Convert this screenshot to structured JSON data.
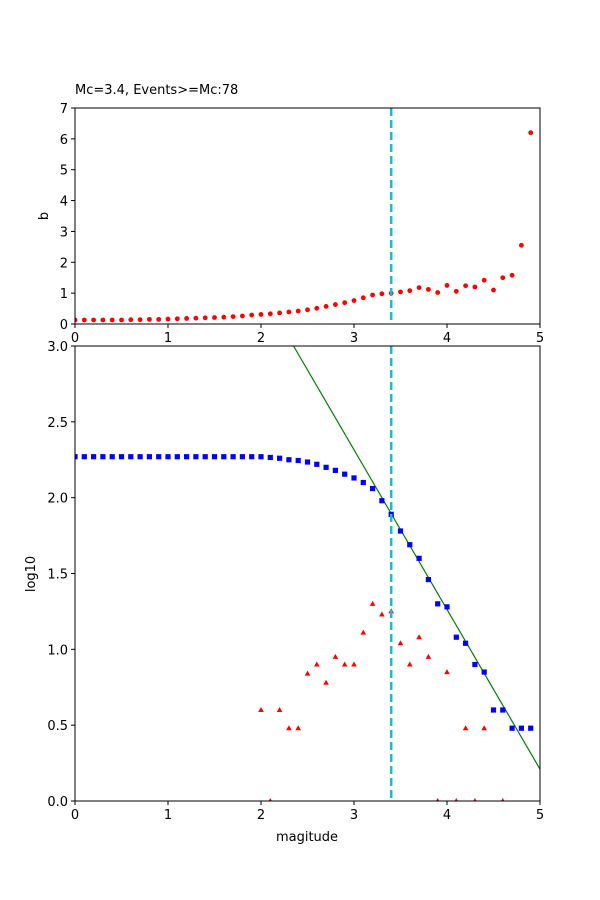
{
  "chart_data": [
    {
      "type": "scatter",
      "title": "Mc=3.4, Events>=Mc:78",
      "xlabel": "",
      "ylabel": "b",
      "xlim": [
        0,
        5
      ],
      "ylim": [
        0,
        7
      ],
      "xticks": [
        "0",
        "1",
        "2",
        "3",
        "4",
        "5"
      ],
      "yticks": [
        "0",
        "1",
        "2",
        "3",
        "4",
        "5",
        "6",
        "7"
      ],
      "grid": false,
      "mc_line": {
        "x": 3.4,
        "color": "#17becf",
        "style": "dashed"
      },
      "series": [
        {
          "marker": "circle",
          "color": "#ff0000",
          "x": [
            0.0,
            0.1,
            0.2,
            0.3,
            0.4,
            0.5,
            0.6,
            0.7,
            0.8,
            0.9,
            1.0,
            1.1,
            1.2,
            1.3,
            1.4,
            1.5,
            1.6,
            1.7,
            1.8,
            1.9,
            2.0,
            2.1,
            2.2,
            2.3,
            2.4,
            2.5,
            2.6,
            2.7,
            2.8,
            2.9,
            3.0,
            3.1,
            3.2,
            3.3,
            3.4,
            3.5,
            3.6,
            3.7,
            3.8,
            3.9,
            4.0,
            4.1,
            4.2,
            4.3,
            4.4,
            4.5,
            4.6,
            4.7,
            4.8,
            4.9
          ],
          "y": [
            0.13,
            0.13,
            0.13,
            0.13,
            0.13,
            0.13,
            0.14,
            0.14,
            0.15,
            0.15,
            0.16,
            0.17,
            0.18,
            0.19,
            0.2,
            0.21,
            0.22,
            0.24,
            0.26,
            0.29,
            0.31,
            0.33,
            0.36,
            0.39,
            0.42,
            0.46,
            0.51,
            0.57,
            0.63,
            0.69,
            0.76,
            0.85,
            0.94,
            0.98,
            1.0,
            1.04,
            1.08,
            1.18,
            1.12,
            1.02,
            1.25,
            1.06,
            1.24,
            1.2,
            1.42,
            1.1,
            1.5,
            1.58,
            2.55,
            6.2
          ]
        }
      ]
    },
    {
      "type": "scatter",
      "title": "",
      "xlabel": "magitude",
      "ylabel": "log10",
      "xlim": [
        0,
        5
      ],
      "ylim": [
        0,
        3
      ],
      "xticks": [
        "0",
        "1",
        "2",
        "3",
        "4",
        "5"
      ],
      "yticks": [
        "0.0",
        "0.5",
        "1.0",
        "1.5",
        "2.0",
        "2.5",
        "3.0"
      ],
      "grid": false,
      "mc_line": {
        "x": 3.4,
        "color": "#17becf",
        "style": "dashed"
      },
      "fit_line": {
        "color": "#008000",
        "x": [
          2.35,
          5.0
        ],
        "y": [
          3.0,
          0.21
        ]
      },
      "series": [
        {
          "marker": "square",
          "color": "#0000ff",
          "x": [
            0.0,
            0.1,
            0.2,
            0.3,
            0.4,
            0.5,
            0.6,
            0.7,
            0.8,
            0.9,
            1.0,
            1.1,
            1.2,
            1.3,
            1.4,
            1.5,
            1.6,
            1.7,
            1.8,
            1.9,
            2.0,
            2.1,
            2.2,
            2.3,
            2.4,
            2.5,
            2.6,
            2.7,
            2.8,
            2.9,
            3.0,
            3.1,
            3.2,
            3.3,
            3.4,
            3.5,
            3.6,
            3.7,
            3.8,
            3.9,
            4.0,
            4.1,
            4.2,
            4.3,
            4.4,
            4.5,
            4.6,
            4.7,
            4.8,
            4.9
          ],
          "y": [
            2.27,
            2.27,
            2.27,
            2.27,
            2.27,
            2.27,
            2.27,
            2.27,
            2.27,
            2.27,
            2.27,
            2.27,
            2.27,
            2.27,
            2.27,
            2.27,
            2.27,
            2.27,
            2.27,
            2.27,
            2.27,
            2.265,
            2.26,
            2.25,
            2.245,
            2.235,
            2.22,
            2.2,
            2.18,
            2.155,
            2.13,
            2.1,
            2.06,
            1.98,
            1.89,
            1.78,
            1.69,
            1.6,
            1.46,
            1.3,
            1.28,
            1.08,
            1.04,
            0.9,
            0.85,
            0.6,
            0.6,
            0.48,
            0.48,
            0.48
          ]
        },
        {
          "marker": "triangle",
          "color": "#ff0000",
          "x": [
            2.0,
            2.2,
            2.3,
            2.4,
            2.5,
            2.6,
            2.7,
            2.8,
            2.9,
            3.0,
            3.1,
            3.2,
            3.3,
            3.4,
            3.5,
            3.6,
            3.7,
            3.8,
            4.0,
            4.2,
            4.4,
            2.1,
            3.9,
            4.1,
            4.3,
            4.6
          ],
          "y": [
            0.6,
            0.6,
            0.48,
            0.48,
            0.84,
            0.9,
            0.78,
            0.95,
            0.9,
            0.9,
            1.11,
            1.3,
            1.23,
            1.25,
            1.04,
            0.9,
            1.08,
            0.95,
            0.85,
            0.48,
            0.48,
            0.0,
            0.0,
            0.0,
            0.0,
            0.0
          ]
        }
      ]
    }
  ]
}
